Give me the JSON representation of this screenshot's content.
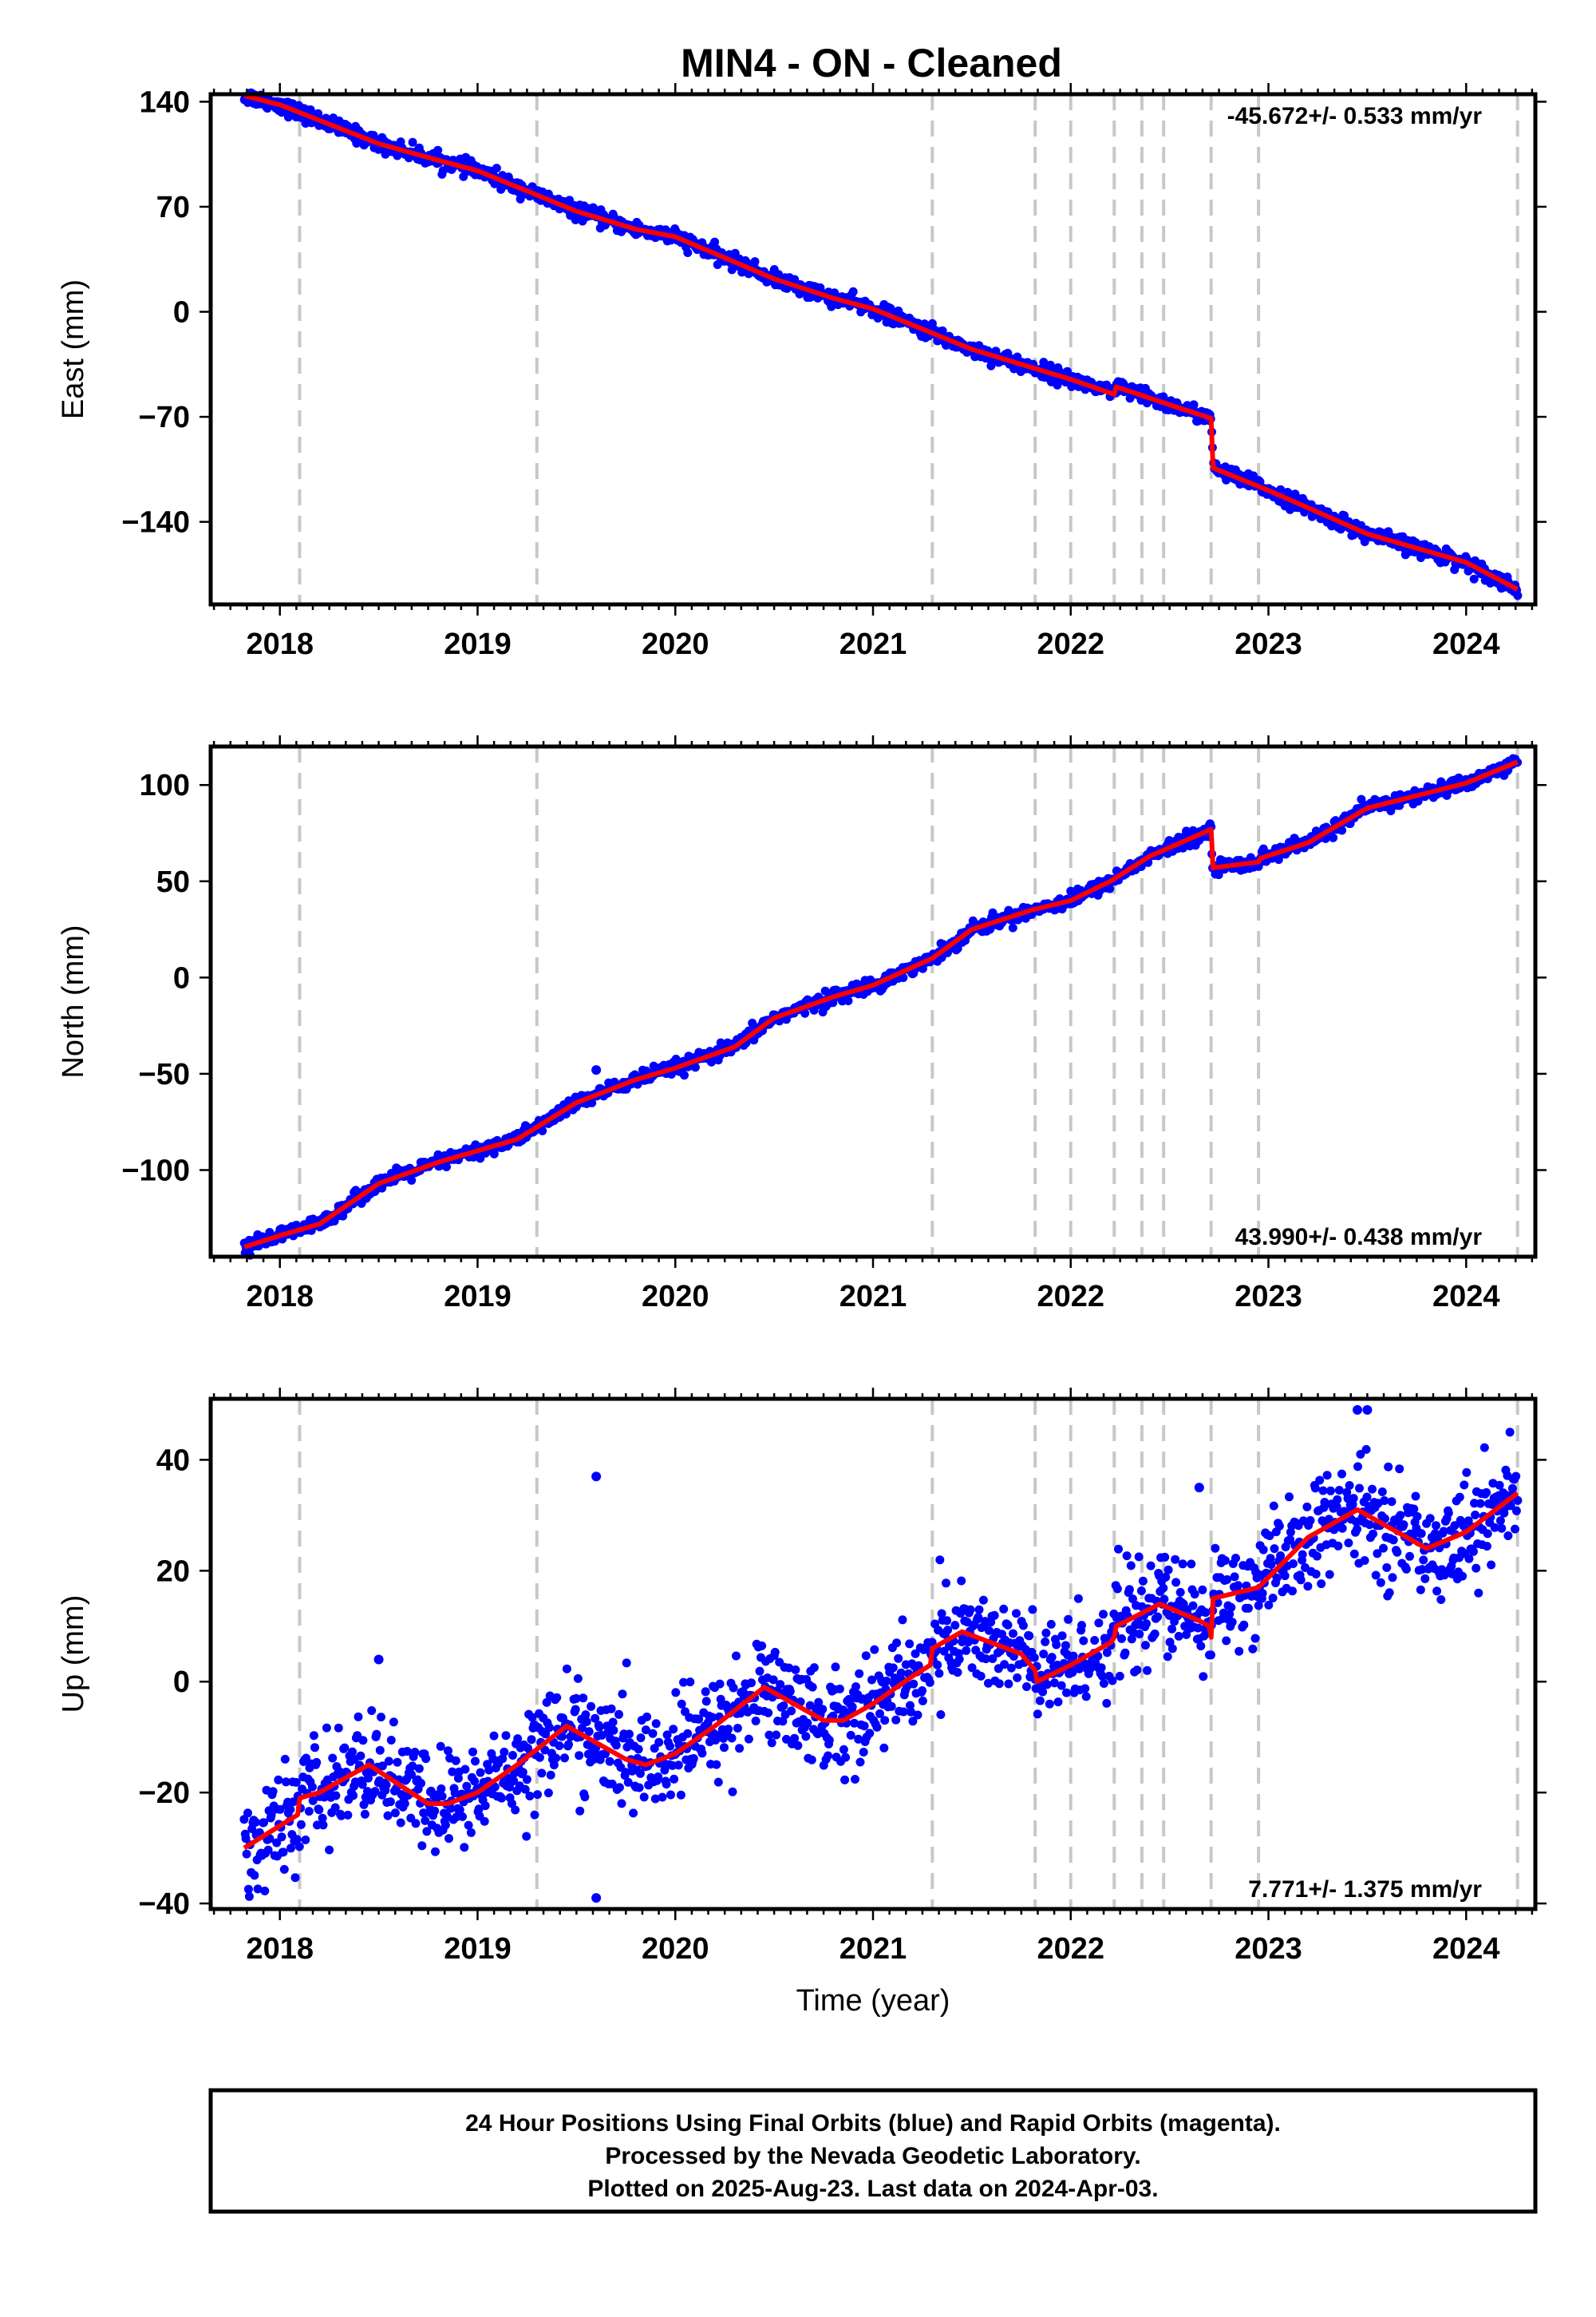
{
  "title": "MIN4  - ON - Cleaned",
  "footer": {
    "line1": "24 Hour Positions Using Final Orbits (blue) and Rapid Orbits (magenta).",
    "line2": "Processed by the Nevada Geodetic Laboratory.",
    "line3": "Plotted on 2025-Aug-23. Last data on 2024-Apr-03."
  },
  "colors": {
    "data": "#0000ff",
    "model": "#ff0000",
    "steps": "#c8c8c8",
    "frame": "#000000"
  },
  "chart_data": [
    {
      "type": "scatter",
      "ylabel": "East (mm)",
      "xlabel": "",
      "rate": "-45.672+/- 0.533 mm/yr",
      "xlim": [
        2017.65,
        2024.35
      ],
      "ylim": [
        -195,
        145
      ],
      "yticks": [
        140,
        70,
        0,
        -70,
        -140
      ],
      "ytick_labels": [
        "140",
        "70",
        "0",
        "−70",
        "−140"
      ],
      "xticks": [
        2018,
        2019,
        2020,
        2021,
        2022,
        2023,
        2024
      ],
      "xtick_labels": [
        "2018",
        "2019",
        "2020",
        "2021",
        "2022",
        "2023",
        "2024"
      ],
      "grid": false,
      "step_epochs": [
        2018.1,
        2019.3,
        2021.3,
        2021.82,
        2022.0,
        2022.22,
        2022.36,
        2022.47,
        2022.71,
        2022.95,
        2024.26
      ],
      "model": {
        "x": [
          2017.82,
          2018.0,
          2018.5,
          2018.8,
          2019.0,
          2019.5,
          2019.8,
          2020.0,
          2020.5,
          2020.8,
          2021.0,
          2021.5,
          2021.8,
          2022.0,
          2022.22,
          2022.23,
          2022.5,
          2022.71,
          2022.72,
          2023.0,
          2023.5,
          2024.0,
          2024.26
        ],
        "y": [
          144,
          138,
          112,
          101,
          94,
          67,
          55,
          50,
          22,
          9,
          2,
          -25,
          -37,
          -45,
          -55,
          -50,
          -62,
          -71,
          -104,
          -119,
          -148,
          -167,
          -185
        ]
      },
      "noise": 2.5,
      "outliers": []
    },
    {
      "type": "scatter",
      "ylabel": "North (mm)",
      "xlabel": "",
      "rate": "43.990+/- 0.438 mm/yr",
      "xlim": [
        2017.65,
        2024.35
      ],
      "ylim": [
        -145,
        120
      ],
      "yticks": [
        100,
        50,
        0,
        -50,
        -100
      ],
      "ytick_labels": [
        "100",
        "50",
        "0",
        "−50",
        "−100"
      ],
      "xticks": [
        2018,
        2019,
        2020,
        2021,
        2022,
        2023,
        2024
      ],
      "xtick_labels": [
        "2018",
        "2019",
        "2020",
        "2021",
        "2022",
        "2023",
        "2024"
      ],
      "grid": false,
      "step_epochs": [
        2018.1,
        2019.3,
        2021.3,
        2021.82,
        2022.0,
        2022.22,
        2022.36,
        2022.47,
        2022.71,
        2022.95,
        2024.26
      ],
      "model": {
        "x": [
          2017.82,
          2018.0,
          2018.2,
          2018.5,
          2018.8,
          2019.0,
          2019.2,
          2019.5,
          2019.8,
          2020.0,
          2020.3,
          2020.5,
          2020.8,
          2021.0,
          2021.3,
          2021.5,
          2021.8,
          2022.0,
          2022.2,
          2022.4,
          2022.71,
          2022.72,
          2022.95,
          2022.96,
          2023.2,
          2023.5,
          2024.0,
          2024.26
        ],
        "y": [
          -140,
          -134,
          -128,
          -107,
          -96,
          -90,
          -84,
          -65,
          -53,
          -47,
          -36,
          -21,
          -10,
          -4,
          10,
          25,
          35,
          40,
          50,
          63,
          77,
          57,
          60,
          62,
          70,
          88,
          101,
          112
        ]
      },
      "noise": 1.8,
      "outliers": [
        [
          2019.6,
          -48
        ]
      ]
    },
    {
      "type": "scatter",
      "ylabel": "Up (mm)",
      "xlabel": "Time (year)",
      "rate": "7.771+/- 1.375 mm/yr",
      "xlim": [
        2017.65,
        2024.35
      ],
      "ylim": [
        -41,
        51
      ],
      "yticks": [
        40,
        20,
        0,
        -20,
        -40
      ],
      "ytick_labels": [
        "40",
        "20",
        "0",
        "−20",
        "−40"
      ],
      "xticks": [
        2018,
        2019,
        2020,
        2021,
        2022,
        2023,
        2024
      ],
      "xtick_labels": [
        "2018",
        "2019",
        "2020",
        "2021",
        "2022",
        "2023",
        "2024"
      ],
      "grid": false,
      "step_epochs": [
        2018.1,
        2019.3,
        2021.3,
        2021.82,
        2022.0,
        2022.22,
        2022.36,
        2022.47,
        2022.71,
        2022.95,
        2024.26
      ],
      "model": {
        "x": [
          2017.82,
          2018.0,
          2018.09,
          2018.1,
          2018.2,
          2018.45,
          2018.75,
          2018.85,
          2019.0,
          2019.2,
          2019.45,
          2019.75,
          2019.85,
          2020.0,
          2020.2,
          2020.45,
          2020.75,
          2020.85,
          2021.0,
          2021.2,
          2021.29,
          2021.3,
          2021.45,
          2021.75,
          2021.82,
          2021.83,
          2022.0,
          2022.2,
          2022.22,
          2022.23,
          2022.45,
          2022.65,
          2022.7,
          2022.71,
          2022.72,
          2022.95,
          2023.2,
          2023.45,
          2023.7,
          2023.8,
          2024.0,
          2024.26
        ],
        "y": [
          -30,
          -26,
          -24,
          -21,
          -20,
          -15,
          -22,
          -22,
          -20,
          -15,
          -8,
          -14,
          -15,
          -13,
          -8,
          -1,
          -7,
          -7,
          -4,
          1,
          3,
          6,
          9,
          5,
          2,
          0,
          3,
          7,
          8,
          10,
          14,
          11,
          10,
          8,
          15,
          17,
          26,
          31,
          26,
          24,
          27,
          34
        ]
      },
      "noise": 4.6,
      "outliers": [
        [
          2019.6,
          37
        ],
        [
          2019.6,
          -39
        ],
        [
          2018.5,
          4
        ],
        [
          2023.45,
          49
        ],
        [
          2023.5,
          49
        ],
        [
          2022.65,
          35
        ]
      ]
    }
  ]
}
